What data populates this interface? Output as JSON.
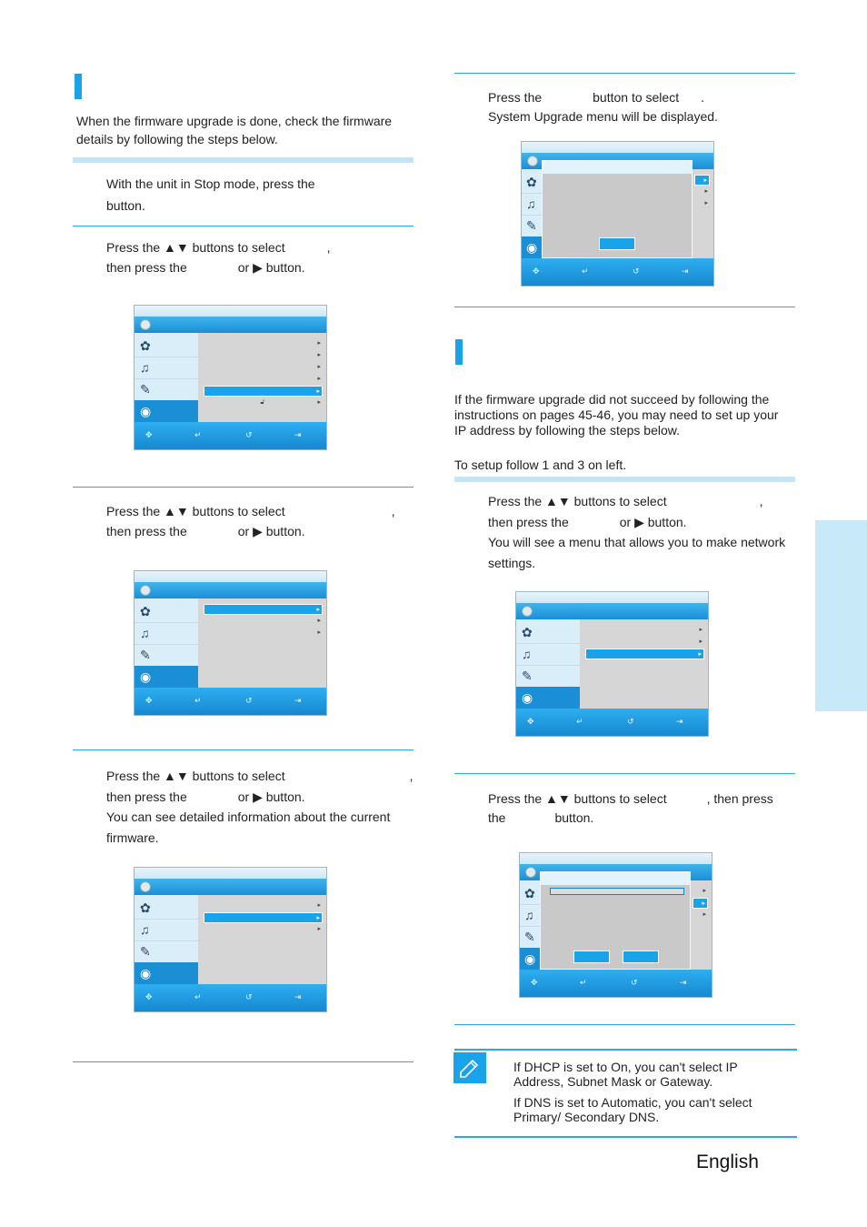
{
  "left": {
    "intro": {
      "line1": "When the firmware upgrade is done, check the firmware",
      "line2": "details by following the steps below."
    },
    "step1": {
      "line1": "With the unit in Stop mode, press the",
      "line2": "button."
    },
    "step2": {
      "line1a": "Press the ▲▼ buttons to select",
      "line1b": ",",
      "line2a": "then press the",
      "line2b": "or ▶ button."
    },
    "step3": {
      "line1a": "Press the ▲▼ buttons to select",
      "line1b": ",",
      "line2a": "then press the",
      "line2b": "or ▶ button."
    },
    "step4": {
      "line1a": "Press the ▲▼ buttons to select",
      "line1b": ",",
      "line2a": "then press the",
      "line2b": "or ▶ button.",
      "line3": "You can see detailed information about the current",
      "line4": "firmware."
    }
  },
  "right": {
    "step_top": {
      "line1a": "Press the",
      "line1b": "button to select",
      "line1c": ".",
      "line2": "System Upgrade menu will be displayed."
    },
    "intro": {
      "line1": "If the firmware upgrade did not succeed by following the",
      "line2": "instructions on pages 45-46, you may need to set up your",
      "line3": "IP address by following the steps below.",
      "line4": "To setup follow 1 and 3 on left."
    },
    "stepA": {
      "line1a": "Press the ▲▼ buttons to select",
      "line1b": ",",
      "line2a": "then press the",
      "line2b": "or ▶ button.",
      "line3": "You will see a menu that allows you to make network",
      "line4": "settings."
    },
    "stepB": {
      "line1a": "Press the ▲▼ buttons to select",
      "line1b": ", then press",
      "line2a": "the",
      "line2b": "button."
    },
    "note": {
      "line1": "If DHCP is set to On, you can't select IP",
      "line2": "Address, Subnet Mask or Gateway.",
      "line3": "If DNS is set to Automatic, you can't select",
      "line4": "Primary/ Secondary DNS."
    }
  },
  "footer": {
    "language": "English"
  },
  "icons": {
    "menu_side": [
      "film-icon",
      "music-note-icon",
      "photo-icon",
      "setup-disc-icon"
    ],
    "footer_icons": [
      "move-icon",
      "enter-icon",
      "return-icon",
      "exit-icon"
    ],
    "note": "pencil-note-icon"
  },
  "colors": {
    "accent": "#1aa3e8",
    "menu_header": "#1a8fd6",
    "side_tab": "#c8eaf8"
  }
}
